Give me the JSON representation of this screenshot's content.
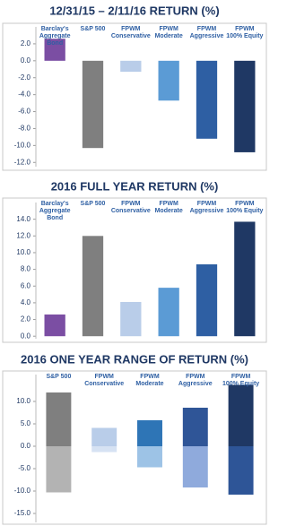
{
  "chart_data": [
    {
      "type": "bar",
      "title": "12/31/15 – 2/11/16 RETURN (%)",
      "categories": [
        "Barclay's\nAggregate Bond",
        "S&P 500",
        "FPWM\nConservative",
        "FPWM\nModerate",
        "FPWM\nAggressive",
        "FPWM\n100% Equity"
      ],
      "values": [
        2.6,
        -10.3,
        -1.3,
        -4.7,
        -9.2,
        -10.8
      ],
      "colors": [
        "#7b4ea3",
        "#7f7f7f",
        "#b9cde9",
        "#5b9bd5",
        "#2e5fa3",
        "#1f3864"
      ],
      "ylim": [
        -12.5,
        4
      ],
      "yticks": [
        {
          "value": 2,
          "label": "2.0"
        },
        {
          "value": 0,
          "label": "0.0"
        },
        {
          "value": -2,
          "label": "-2.0"
        },
        {
          "value": -4,
          "label": "-4.0"
        },
        {
          "value": -6,
          "label": "-6.0"
        },
        {
          "value": -8,
          "label": "-8.0"
        },
        {
          "value": -10,
          "label": "-10.0"
        },
        {
          "value": -12,
          "label": "-12.0"
        }
      ]
    },
    {
      "type": "bar",
      "title": "2016 FULL YEAR RETURN (%)",
      "categories": [
        "Barclay's\nAggregate Bond",
        "S&P 500",
        "FPWM\nConservative",
        "FPWM\nModerate",
        "FPWM\nAggressive",
        "FPWM\n100% Equity"
      ],
      "values": [
        2.6,
        12.0,
        4.1,
        5.8,
        8.6,
        13.7
      ],
      "colors": [
        "#7b4ea3",
        "#7f7f7f",
        "#b9cde9",
        "#5b9bd5",
        "#2e5fa3",
        "#1f3864"
      ],
      "ylim": [
        -0.3,
        16
      ],
      "yticks": [
        {
          "value": 14,
          "label": "14.0"
        },
        {
          "value": 12,
          "label": "12.0"
        },
        {
          "value": 10,
          "label": "10.0"
        },
        {
          "value": 8,
          "label": "8.0"
        },
        {
          "value": 6,
          "label": "6.0"
        },
        {
          "value": 4,
          "label": "4.0"
        },
        {
          "value": 2,
          "label": "2.0"
        },
        {
          "value": 0,
          "label": "0.0"
        }
      ]
    },
    {
      "type": "range",
      "title": "2016 ONE YEAR RANGE OF RETURN (%)",
      "categories": [
        "S&P 500",
        "FPWM\nConservative",
        "FPWM\nModerate",
        "FPWM\nAggressive",
        "FPWM\n100% Equity"
      ],
      "high": [
        12.0,
        4.1,
        5.8,
        8.6,
        13.7
      ],
      "low": [
        -10.3,
        -1.3,
        -4.7,
        -9.2,
        -10.8
      ],
      "high_colors": [
        "#7f7f7f",
        "#b9cde9",
        "#2e75b6",
        "#2f5597",
        "#1f3864"
      ],
      "low_colors": [
        "#b3b3b3",
        "#d6e2f3",
        "#9dc3e6",
        "#8faadc",
        "#2e5597"
      ],
      "ylim": [
        -17,
        16
      ],
      "yticks": [
        {
          "value": 10,
          "label": "10.0"
        },
        {
          "value": 5,
          "label": "5.0"
        },
        {
          "value": 0,
          "label": "0.0"
        },
        {
          "value": -5,
          "label": "-5.0"
        },
        {
          "value": -10,
          "label": "-10.0"
        },
        {
          "value": -15,
          "label": "-15.0"
        }
      ]
    }
  ]
}
